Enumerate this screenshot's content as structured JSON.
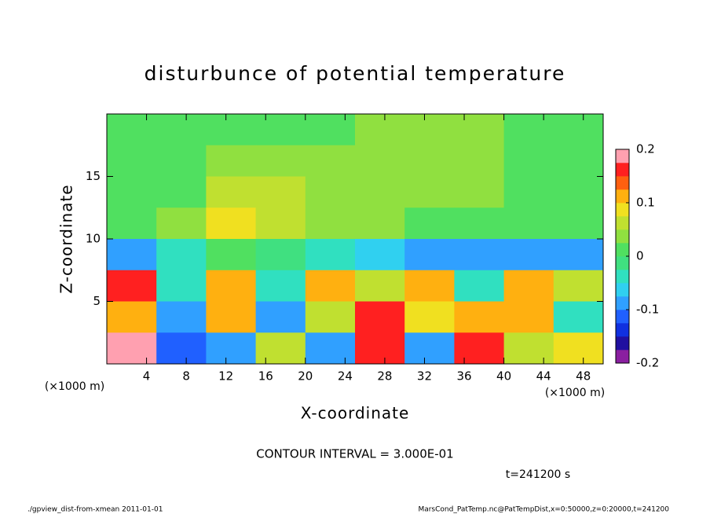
{
  "chart_data": {
    "type": "heatmap",
    "title": "disturbunce of potential temperature",
    "xlabel": "X-coordinate",
    "ylabel": "Z-coordinate",
    "x_unit_labels": [
      "(×1000 m)",
      "(×1000 m)"
    ],
    "contour_interval": "CONTOUR INTERVAL = 3.000E-01",
    "time_label": "t=241200 s",
    "footer_left": "./gpview_dist-from-xmean  2011-01-01",
    "footer_right": "MarsCond_PatTemp.nc@PatTempDist,x=0:50000,z=0:20000,t=241200",
    "xlim": [
      0,
      50
    ],
    "ylim": [
      0,
      20
    ],
    "xticks": [
      4,
      8,
      12,
      16,
      20,
      24,
      28,
      32,
      36,
      40,
      44,
      48
    ],
    "yticks": [
      5,
      10,
      15
    ],
    "x_edges": [
      0,
      5,
      10,
      15,
      20,
      25,
      30,
      35,
      40,
      45,
      50
    ],
    "y_edges": [
      20,
      17.5,
      15,
      12.5,
      10,
      7.5,
      5,
      2.5,
      0
    ],
    "z": [
      [
        0,
        0,
        0.02,
        0.02,
        0.02,
        0.03,
        0.03,
        0.03,
        0.02,
        0.01
      ],
      [
        0,
        0.01,
        0.03,
        0.04,
        0.03,
        0.04,
        0.04,
        0.04,
        0.02,
        0
      ],
      [
        0,
        0.02,
        0.05,
        0.05,
        0.04,
        0.04,
        0.04,
        0.04,
        0.02,
        0
      ],
      [
        0,
        0.04,
        0.08,
        0.06,
        0.04,
        0.03,
        0.02,
        0.02,
        0.01,
        0
      ],
      [
        -0.1,
        -0.05,
        0.02,
        -0.02,
        -0.05,
        -0.06,
        -0.08,
        -0.08,
        -0.1,
        -0.1
      ],
      [
        0.15,
        -0.05,
        0.1,
        -0.05,
        0.1,
        0.05,
        0.1,
        -0.05,
        0.1,
        0.05
      ],
      [
        0.1,
        -0.1,
        0.12,
        -0.08,
        0.05,
        0.15,
        0.08,
        0.12,
        0.1,
        -0.05
      ],
      [
        0.2,
        -0.12,
        -0.1,
        0.05,
        -0.1,
        0.15,
        -0.08,
        0.15,
        0.05,
        0.08
      ]
    ],
    "colorbar": {
      "levels": [
        -0.2,
        -0.175,
        -0.15,
        -0.125,
        -0.1,
        -0.075,
        -0.05,
        -0.025,
        0,
        0.025,
        0.05,
        0.075,
        0.1,
        0.125,
        0.15,
        0.175,
        0.2
      ],
      "colors": [
        "#8a1fa0",
        "#2010a0",
        "#1030e0",
        "#2060ff",
        "#30a0ff",
        "#30d0f0",
        "#30e0c0",
        "#40e080",
        "#50e060",
        "#90e040",
        "#c0e030",
        "#f0e020",
        "#ffb010",
        "#ff6010",
        "#ff2020",
        "#ffa0b0"
      ],
      "ticks": [
        0.2,
        0.1,
        0,
        -0.1,
        -0.2
      ]
    }
  }
}
